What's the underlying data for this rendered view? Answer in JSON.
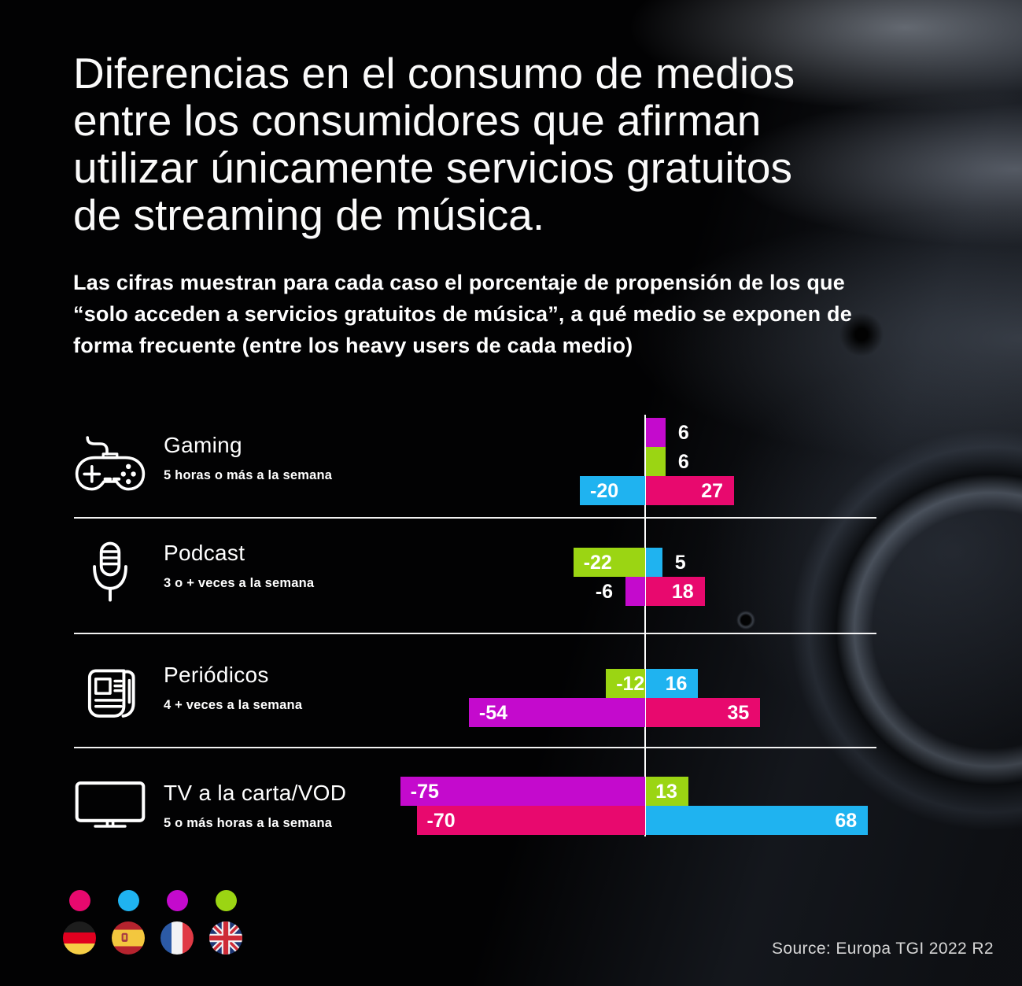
{
  "header": {
    "title_lines": [
      "Diferencias en el consumo de medios",
      "entre los consumidores que afirman",
      "utilizar únicamente servicios gratuitos",
      "de streaming de música."
    ],
    "subtitle_lines": [
      "Las cifras muestran para cada caso el porcentaje de propensión de los que",
      "“solo acceden a servicios gratuitos de música”, a qué medio se exponen de",
      "forma frecuente (entre los heavy users de cada medio)"
    ]
  },
  "source": "Source: Europa TGI 2022 R2",
  "legend": {
    "countries": [
      {
        "name": "Alemania",
        "flag": "germany",
        "color": "#E8096E"
      },
      {
        "name": "España",
        "flag": "spain",
        "color": "#1FB3F0"
      },
      {
        "name": "Francia",
        "flag": "france",
        "color": "#C40ACD"
      },
      {
        "name": "Reino Unido",
        "flag": "uk",
        "color": "#9BD513"
      }
    ]
  },
  "chart_data": {
    "type": "bar",
    "orientation": "horizontal-diverging",
    "unit": "propensity %",
    "xlim": [
      -80,
      75
    ],
    "grid": false,
    "legend_position": "bottom-left",
    "series_colors": {
      "germany": "#E8096E",
      "spain": "#1FB3F0",
      "france": "#C40ACD",
      "uk": "#9BD513"
    },
    "groups": [
      {
        "label": "Gaming",
        "sublabel": "5 horas o más a la semana",
        "icon": "gamepad-icon",
        "rows": [
          [
            {
              "country": "france",
              "value": 6
            }
          ],
          [
            {
              "country": "uk",
              "value": 6
            }
          ],
          [
            {
              "country": "spain",
              "value": -20
            },
            {
              "country": "germany",
              "value": 27
            }
          ]
        ]
      },
      {
        "label": "Podcast",
        "sublabel": "3 o + veces a la semana",
        "icon": "microphone-icon",
        "rows": [
          [
            {
              "country": "uk",
              "value": -22
            },
            {
              "country": "spain",
              "value": 5
            }
          ],
          [
            {
              "country": "france",
              "value": -6
            },
            {
              "country": "germany",
              "value": 18
            }
          ]
        ]
      },
      {
        "label": "Periódicos",
        "sublabel": "4 + veces a la semana",
        "icon": "newspaper-icon",
        "rows": [
          [
            {
              "country": "uk",
              "value": -12
            },
            {
              "country": "spain",
              "value": 16
            }
          ],
          [
            {
              "country": "france",
              "value": -54
            },
            {
              "country": "germany",
              "value": 35
            }
          ]
        ]
      },
      {
        "label": "TV a la carta/VOD",
        "sublabel": "5 o más horas a la semana",
        "icon": "tv-icon",
        "rows": [
          [
            {
              "country": "france",
              "value": -75
            },
            {
              "country": "uk",
              "value": 13
            }
          ],
          [
            {
              "country": "germany",
              "value": -70
            },
            {
              "country": "spain",
              "value": 68
            }
          ]
        ]
      }
    ]
  }
}
